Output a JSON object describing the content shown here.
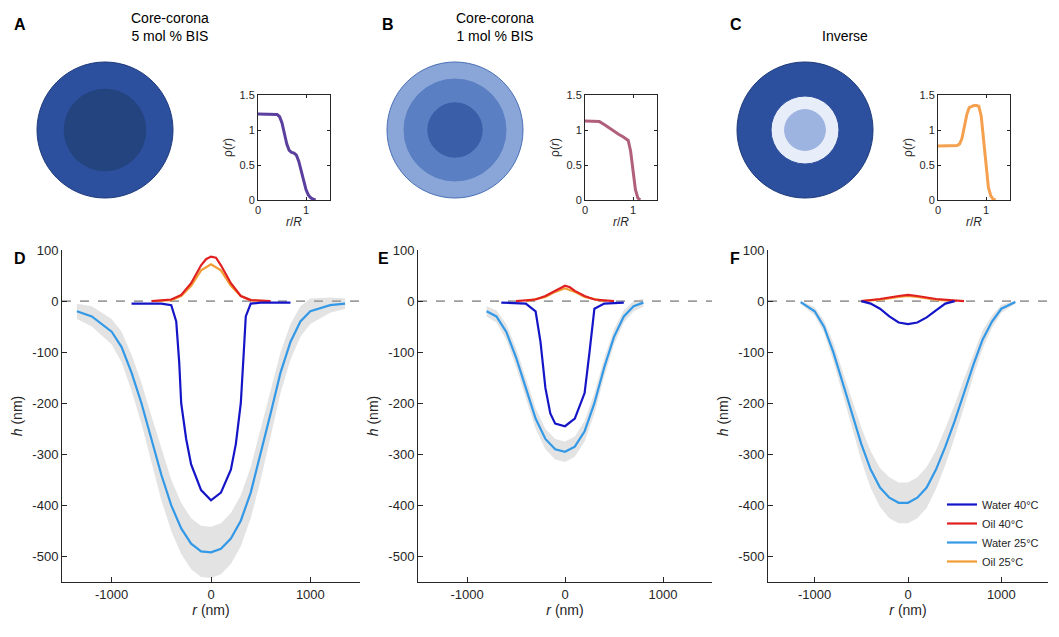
{
  "chart_data": [
    {
      "type": "line",
      "panel": "A",
      "title": "Core-corona 5 mol % BIS",
      "xlabel": "r/R",
      "ylabel": "ρ(r)",
      "xlim": [
        0,
        1.5
      ],
      "xticks": [
        0,
        1
      ],
      "ylim": [
        0,
        1.5
      ],
      "yticks": [
        0,
        0.5,
        1,
        1.5
      ],
      "color": "#5b3f9e",
      "x": [
        0,
        0.1,
        0.2,
        0.3,
        0.4,
        0.45,
        0.5,
        0.55,
        0.6,
        0.65,
        0.7,
        0.75,
        0.8,
        0.85,
        0.9,
        0.95,
        1.0,
        1.05,
        1.1,
        1.15,
        1.2
      ],
      "values": [
        1.23,
        1.23,
        1.23,
        1.23,
        1.22,
        1.19,
        1.1,
        0.95,
        0.8,
        0.71,
        0.68,
        0.67,
        0.64,
        0.55,
        0.42,
        0.28,
        0.15,
        0.07,
        0.03,
        0.01,
        0
      ]
    },
    {
      "type": "line",
      "panel": "B",
      "title": "Core-corona 1 mol % BIS",
      "xlabel": "r/R",
      "ylabel": "ρ(r)",
      "xlim": [
        0,
        1.5
      ],
      "xticks": [
        0,
        1
      ],
      "ylim": [
        0,
        1.5
      ],
      "yticks": [
        0,
        0.5,
        1,
        1.5
      ],
      "color": "#b0607c",
      "x": [
        0,
        0.1,
        0.2,
        0.3,
        0.4,
        0.5,
        0.6,
        0.7,
        0.8,
        0.9,
        0.95,
        1.0,
        1.05,
        1.1,
        1.15
      ],
      "values": [
        1.13,
        1.13,
        1.13,
        1.12,
        1.08,
        1.03,
        0.98,
        0.94,
        0.9,
        0.85,
        0.7,
        0.4,
        0.15,
        0.03,
        0
      ]
    },
    {
      "type": "line",
      "panel": "C",
      "title": "Inverse",
      "xlabel": "r/R",
      "ylabel": "ρ(r)",
      "xlim": [
        0,
        1.5
      ],
      "xticks": [
        0,
        1
      ],
      "ylim": [
        0,
        1.5
      ],
      "yticks": [
        0,
        0.5,
        1,
        1.5
      ],
      "color": "#f5a04e",
      "x": [
        0,
        0.1,
        0.2,
        0.3,
        0.4,
        0.45,
        0.5,
        0.55,
        0.6,
        0.65,
        0.7,
        0.75,
        0.8,
        0.85,
        0.9,
        0.95,
        1.0,
        1.05,
        1.1,
        1.15,
        1.2
      ],
      "values": [
        0.77,
        0.77,
        0.77,
        0.77,
        0.78,
        0.8,
        0.88,
        1.05,
        1.22,
        1.32,
        1.34,
        1.35,
        1.35,
        1.34,
        1.2,
        0.85,
        0.45,
        0.18,
        0.06,
        0.01,
        0
      ]
    },
    {
      "type": "line",
      "panel": "D",
      "xlabel": "r (nm)",
      "ylabel": "h (nm)",
      "xlim": [
        -1500,
        1500
      ],
      "xticks": [
        -1000,
        0,
        1000
      ],
      "ylim": [
        -550,
        100
      ],
      "yticks": [
        -500,
        -400,
        -300,
        -200,
        -100,
        0,
        100
      ],
      "hline": 0,
      "series": [
        {
          "name": "Oil 25°C",
          "color": "#f39c33",
          "x": [
            -550,
            -400,
            -300,
            -200,
            -100,
            0,
            100,
            200,
            300,
            400,
            550
          ],
          "values": [
            0,
            2,
            10,
            30,
            60,
            72,
            60,
            30,
            10,
            2,
            0
          ]
        },
        {
          "name": "Water 25°C",
          "color": "#3399e6",
          "x": [
            -1350,
            -1200,
            -1000,
            -900,
            -800,
            -700,
            -600,
            -500,
            -400,
            -300,
            -200,
            -100,
            0,
            100,
            200,
            300,
            400,
            500,
            600,
            700,
            800,
            900,
            1000,
            1200,
            1350
          ],
          "values": [
            -20,
            -30,
            -60,
            -90,
            -140,
            -200,
            -270,
            -340,
            -400,
            -445,
            -475,
            -490,
            -492,
            -485,
            -465,
            -430,
            -375,
            -300,
            -220,
            -140,
            -80,
            -40,
            -20,
            -8,
            -5
          ],
          "error": [
            15,
            20,
            25,
            30,
            35,
            40,
            45,
            50,
            50,
            50,
            50,
            50,
            50,
            50,
            50,
            50,
            50,
            50,
            45,
            40,
            35,
            30,
            25,
            15,
            10
          ]
        },
        {
          "name": "Oil 40°C",
          "color": "#e02020",
          "x": [
            -600,
            -400,
            -300,
            -200,
            -100,
            -50,
            0,
            50,
            100,
            200,
            300,
            400,
            600
          ],
          "values": [
            0,
            3,
            12,
            35,
            70,
            82,
            87,
            85,
            70,
            35,
            10,
            2,
            0
          ]
        },
        {
          "name": "Water 40°C",
          "color": "#1515c8",
          "x": [
            -800,
            -500,
            -400,
            -350,
            -320,
            -300,
            -250,
            -200,
            -100,
            0,
            100,
            200,
            250,
            300,
            330,
            350,
            400,
            500,
            800
          ],
          "values": [
            -5,
            -5,
            -8,
            -40,
            -120,
            -200,
            -270,
            -320,
            -370,
            -390,
            -375,
            -330,
            -280,
            -200,
            -100,
            -30,
            -5,
            -3,
            -3
          ]
        }
      ]
    },
    {
      "type": "line",
      "panel": "E",
      "xlabel": "r (nm)",
      "ylabel": "h (nm)",
      "xlim": [
        -1500,
        1500
      ],
      "xticks": [
        -1000,
        0,
        1000
      ],
      "ylim": [
        -550,
        100
      ],
      "yticks": [
        -500,
        -400,
        -300,
        -200,
        -100,
        0,
        100
      ],
      "hline": 0,
      "series": [
        {
          "name": "Oil 25°C",
          "color": "#f39c33",
          "x": [
            -400,
            -200,
            -100,
            0,
            100,
            200,
            400
          ],
          "values": [
            0,
            8,
            18,
            25,
            18,
            8,
            0
          ]
        },
        {
          "name": "Water 25°C",
          "color": "#3399e6",
          "x": [
            -800,
            -700,
            -600,
            -500,
            -400,
            -300,
            -200,
            -100,
            0,
            100,
            200,
            300,
            400,
            500,
            600,
            700,
            800
          ],
          "values": [
            -20,
            -30,
            -60,
            -110,
            -170,
            -230,
            -270,
            -290,
            -295,
            -285,
            -255,
            -200,
            -130,
            -70,
            -30,
            -10,
            -3
          ],
          "error": [
            10,
            12,
            15,
            18,
            20,
            20,
            20,
            20,
            20,
            20,
            20,
            20,
            18,
            15,
            12,
            10,
            8
          ]
        },
        {
          "name": "Oil 40°C",
          "color": "#e02020",
          "x": [
            -500,
            -300,
            -200,
            -100,
            0,
            50,
            100,
            200,
            300,
            500
          ],
          "values": [
            0,
            3,
            10,
            20,
            30,
            27,
            20,
            10,
            3,
            0
          ]
        },
        {
          "name": "Water 40°C",
          "color": "#1515c8",
          "x": [
            -650,
            -400,
            -300,
            -250,
            -200,
            -150,
            -100,
            0,
            100,
            200,
            250,
            280,
            300,
            400,
            600
          ],
          "values": [
            -3,
            -5,
            -20,
            -80,
            -170,
            -220,
            -240,
            -245,
            -230,
            -180,
            -100,
            -40,
            -15,
            -5,
            -3
          ]
        }
      ]
    },
    {
      "type": "line",
      "panel": "F",
      "xlabel": "r (nm)",
      "ylabel": "h (nm)",
      "legend": "lower right",
      "xlim": [
        -1500,
        1500
      ],
      "xticks": [
        -1000,
        0,
        1000
      ],
      "ylim": [
        -550,
        100
      ],
      "yticks": [
        -500,
        -400,
        -300,
        -200,
        -100,
        0,
        100
      ],
      "hline": 0,
      "series": [
        {
          "name": "Oil 25°C",
          "color": "#f39c33",
          "x": [
            -500,
            -300,
            -100,
            0,
            100,
            300,
            500
          ],
          "values": [
            0,
            3,
            8,
            10,
            8,
            3,
            0
          ]
        },
        {
          "name": "Water 25°C",
          "color": "#3399e6",
          "x": [
            -1150,
            -1000,
            -900,
            -800,
            -700,
            -600,
            -500,
            -400,
            -300,
            -200,
            -100,
            0,
            100,
            200,
            300,
            400,
            500,
            600,
            700,
            800,
            900,
            1000,
            1150
          ],
          "values": [
            -2,
            -20,
            -50,
            -100,
            -160,
            -220,
            -280,
            -330,
            -365,
            -385,
            -395,
            -395,
            -385,
            -365,
            -330,
            -285,
            -235,
            -180,
            -125,
            -75,
            -40,
            -15,
            -2
          ],
          "error": [
            3,
            8,
            12,
            18,
            22,
            28,
            32,
            36,
            38,
            40,
            40,
            40,
            40,
            40,
            38,
            36,
            32,
            28,
            22,
            18,
            12,
            8,
            3
          ]
        },
        {
          "name": "Oil 40°C",
          "color": "#e02020",
          "x": [
            -500,
            -300,
            -100,
            0,
            100,
            300,
            600
          ],
          "values": [
            0,
            4,
            10,
            12,
            10,
            4,
            0
          ]
        },
        {
          "name": "Water 40°C",
          "color": "#1515c8",
          "x": [
            -500,
            -400,
            -300,
            -200,
            -100,
            0,
            100,
            200,
            300,
            400,
            500
          ],
          "values": [
            0,
            -5,
            -15,
            -30,
            -42,
            -45,
            -42,
            -32,
            -18,
            -5,
            0
          ]
        }
      ]
    }
  ]
}
